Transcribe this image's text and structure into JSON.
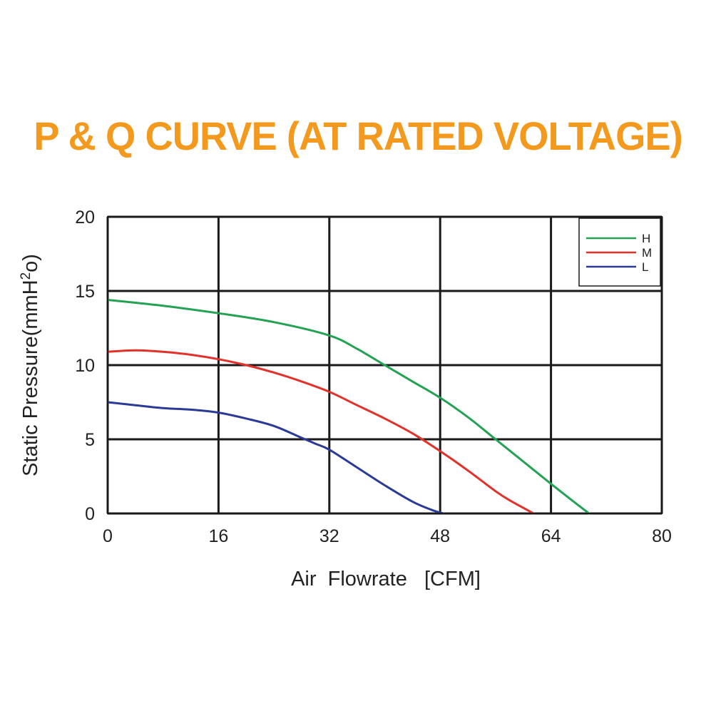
{
  "chart_data": {
    "type": "line",
    "title": "P & Q CURVE (AT RATED VOLTAGE)",
    "xlabel": "Air  Flowrate   [CFM]",
    "ylabel_main": "Static Pressure(mmH",
    "ylabel_sup": "2",
    "ylabel_end": "o)",
    "xlim": [
      0,
      80
    ],
    "ylim": [
      0,
      20
    ],
    "xticks": [
      0,
      16,
      32,
      48,
      64,
      80
    ],
    "yticks": [
      0,
      5,
      10,
      15,
      20
    ],
    "grid": true,
    "legend_position": "top-right",
    "series": [
      {
        "name": "H",
        "color": "#23a253",
        "x": [
          0,
          8,
          16,
          24,
          32,
          36,
          40,
          44,
          48,
          52,
          56,
          60,
          64,
          67,
          69.5
        ],
        "y": [
          14.4,
          14.0,
          13.5,
          12.9,
          12.0,
          11.1,
          10.0,
          8.9,
          7.8,
          6.5,
          5.0,
          3.5,
          2.0,
          0.9,
          0
        ]
      },
      {
        "name": "M",
        "color": "#e2312a",
        "x": [
          0,
          4,
          8,
          12,
          16,
          20,
          24,
          28,
          32,
          36,
          40,
          44,
          48,
          52,
          56,
          58,
          61.5
        ],
        "y": [
          10.9,
          11.0,
          10.9,
          10.7,
          10.4,
          10.0,
          9.5,
          8.9,
          8.2,
          7.3,
          6.4,
          5.4,
          4.2,
          2.9,
          1.5,
          0.9,
          0
        ]
      },
      {
        "name": "L",
        "color": "#2b3a96",
        "x": [
          0,
          4,
          8,
          12,
          16,
          20,
          24,
          28,
          30,
          32,
          36,
          40,
          44,
          47,
          48.5
        ],
        "y": [
          7.5,
          7.3,
          7.1,
          7.0,
          6.8,
          6.4,
          5.9,
          5.1,
          4.7,
          4.3,
          3.1,
          1.9,
          0.8,
          0.2,
          0
        ]
      }
    ]
  }
}
